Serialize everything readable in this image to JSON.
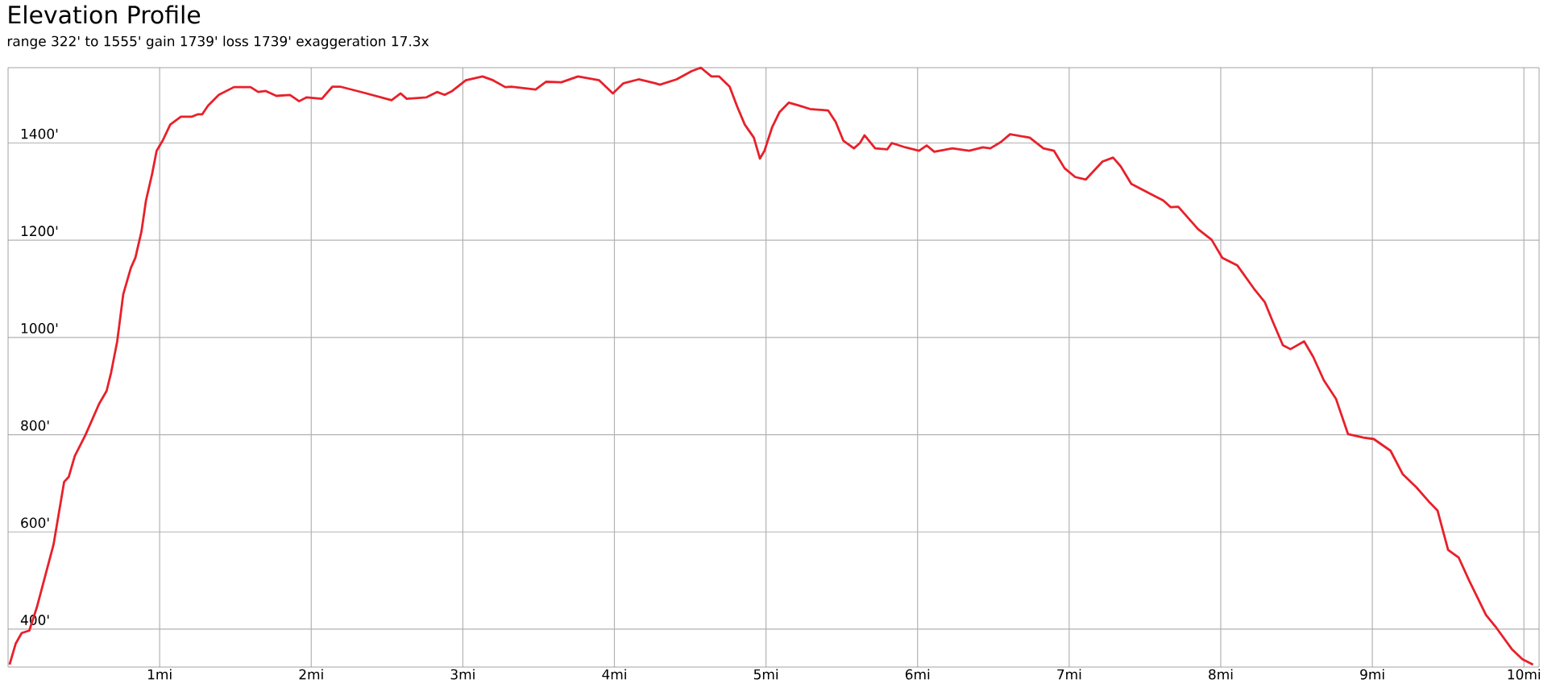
{
  "chart_data": {
    "type": "line",
    "title": "Elevation Profile",
    "subtitle": "range 322' to 1555'  gain 1739'  loss 1739'  exaggeration 17.3x",
    "x": [
      0.01,
      0.05,
      0.09,
      0.14,
      0.19,
      0.3,
      0.37,
      0.4,
      0.44,
      0.51,
      0.6,
      0.65,
      0.68,
      0.72,
      0.76,
      0.81,
      0.84,
      0.88,
      0.91,
      0.95,
      0.98,
      1.02,
      1.07,
      1.14,
      1.21,
      1.25,
      1.28,
      1.32,
      1.39,
      1.49,
      1.6,
      1.65,
      1.7,
      1.77,
      1.86,
      1.92,
      1.97,
      2.07,
      2.14,
      2.19,
      2.34,
      2.53,
      2.59,
      2.63,
      2.76,
      2.83,
      2.88,
      2.93,
      3.02,
      3.13,
      3.2,
      3.28,
      3.32,
      3.48,
      3.55,
      3.65,
      3.76,
      3.9,
      3.99,
      4.06,
      4.16,
      4.27,
      4.3,
      4.41,
      4.51,
      4.57,
      4.64,
      4.69,
      4.76,
      4.81,
      4.86,
      4.92,
      4.96,
      4.99,
      5.04,
      5.09,
      5.15,
      5.22,
      5.29,
      5.41,
      5.46,
      5.51,
      5.58,
      5.62,
      5.65,
      5.72,
      5.8,
      5.83,
      5.92,
      6.01,
      6.06,
      6.11,
      6.23,
      6.34,
      6.43,
      6.48,
      6.55,
      6.61,
      6.74,
      6.83,
      6.9,
      6.97,
      7.04,
      7.11,
      7.22,
      7.29,
      7.34,
      7.41,
      7.55,
      7.62,
      7.67,
      7.72,
      7.85,
      7.94,
      8.01,
      8.11,
      8.22,
      8.29,
      8.34,
      8.41,
      8.46,
      8.55,
      8.61,
      8.68,
      8.76,
      8.84,
      8.94,
      9.01,
      9.12,
      9.2,
      9.29,
      9.38,
      9.43,
      9.5,
      9.57,
      9.64,
      9.75,
      9.82,
      9.92,
      9.99,
      10.06
    ],
    "series": [
      {
        "color": "#e8202a",
        "values": [
          327,
          370,
          392,
          397,
          445,
          574,
          703,
          713,
          756,
          799,
          863,
          890,
          928,
          992,
          1089,
          1143,
          1164,
          1218,
          1282,
          1336,
          1384,
          1405,
          1438,
          1454,
          1454,
          1459,
          1459,
          1477,
          1499,
          1515,
          1515,
          1505,
          1507,
          1497,
          1499,
          1486,
          1494,
          1491,
          1516,
          1516,
          1504,
          1488,
          1502,
          1491,
          1494,
          1505,
          1499,
          1507,
          1529,
          1537,
          1529,
          1515,
          1516,
          1510,
          1526,
          1525,
          1537,
          1529,
          1502,
          1523,
          1531,
          1523,
          1520,
          1531,
          1548,
          1555,
          1537,
          1537,
          1516,
          1475,
          1438,
          1411,
          1368,
          1384,
          1432,
          1464,
          1483,
          1477,
          1470,
          1467,
          1443,
          1405,
          1389,
          1400,
          1416,
          1389,
          1387,
          1400,
          1391,
          1384,
          1395,
          1382,
          1389,
          1384,
          1391,
          1389,
          1402,
          1418,
          1411,
          1389,
          1384,
          1348,
          1330,
          1325,
          1362,
          1370,
          1352,
          1316,
          1293,
          1282,
          1268,
          1269,
          1223,
          1201,
          1164,
          1148,
          1100,
          1073,
          1035,
          984,
          976,
          992,
          960,
          912,
          874,
          801,
          794,
          791,
          767,
          719,
          692,
          660,
          644,
          563,
          547,
          499,
          429,
          402,
          359,
          338,
          327
        ]
      }
    ],
    "xlim": [
      0,
      10.1
    ],
    "ylim": [
      322,
      1555
    ],
    "xticks": [
      {
        "value": 1,
        "label": "1mi"
      },
      {
        "value": 2,
        "label": "2mi"
      },
      {
        "value": 3,
        "label": "3mi"
      },
      {
        "value": 4,
        "label": "4mi"
      },
      {
        "value": 5,
        "label": "5mi"
      },
      {
        "value": 6,
        "label": "6mi"
      },
      {
        "value": 7,
        "label": "7mi"
      },
      {
        "value": 8,
        "label": "8mi"
      },
      {
        "value": 9,
        "label": "9mi"
      },
      {
        "value": 10,
        "label": "10mi"
      }
    ],
    "yticks": [
      {
        "value": 400,
        "label": "400'"
      },
      {
        "value": 600,
        "label": "600'"
      },
      {
        "value": 800,
        "label": "800'"
      },
      {
        "value": 1000,
        "label": "1000'"
      },
      {
        "value": 1200,
        "label": "1200'"
      },
      {
        "value": 1400,
        "label": "1400'"
      }
    ],
    "grid": true
  }
}
